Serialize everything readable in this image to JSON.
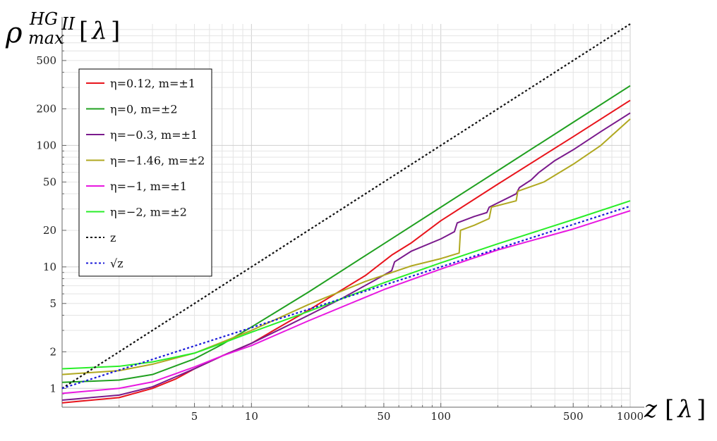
{
  "chart_data": {
    "type": "line",
    "title": "",
    "scale": {
      "x": "log",
      "y": "log"
    },
    "xlim": [
      1,
      1000
    ],
    "ylim": [
      0.7,
      1000
    ],
    "grid": true,
    "legend_placement": "top-left",
    "ylabel": {
      "base": "ρ",
      "superscript": "HG",
      "superscript_sub": "II",
      "subscript": "max",
      "unit_open": "[",
      "unit": "λ",
      "unit_close": "]"
    },
    "xlabel": {
      "base": "z",
      "unit_open": "[",
      "unit": "λ",
      "unit_close": "]"
    },
    "x_ticks": [
      5,
      10,
      50,
      100,
      500,
      1000
    ],
    "x_tick_labels": [
      "5",
      "10",
      "50",
      "100",
      "500",
      "1000"
    ],
    "y_ticks": [
      1,
      2,
      5,
      10,
      20,
      50,
      100,
      200,
      500
    ],
    "y_tick_labels": [
      "1",
      "2",
      "5",
      "10",
      "20",
      "50",
      "100",
      "200",
      "500"
    ],
    "series": [
      {
        "name": "η=0.12, m=±1",
        "color": "#e8141c",
        "dash": "solid",
        "points": [
          [
            1,
            0.76
          ],
          [
            2,
            0.84
          ],
          [
            3,
            1.0
          ],
          [
            4,
            1.2
          ],
          [
            5,
            1.45
          ],
          [
            7,
            1.85
          ],
          [
            10,
            2.35
          ],
          [
            20,
            4.4
          ],
          [
            40,
            8.5
          ],
          [
            55,
            12.5
          ],
          [
            70,
            15.8
          ],
          [
            100,
            24
          ],
          [
            200,
            48
          ],
          [
            500,
            118
          ],
          [
            1000,
            235
          ]
        ]
      },
      {
        "name": "η=0, m=±2",
        "color": "#20a020",
        "dash": "solid",
        "points": [
          [
            1,
            1.12
          ],
          [
            2,
            1.17
          ],
          [
            3,
            1.3
          ],
          [
            5,
            1.75
          ],
          [
            7,
            2.3
          ],
          [
            10,
            3.2
          ],
          [
            20,
            6.2
          ],
          [
            50,
            15.5
          ],
          [
            100,
            31
          ],
          [
            200,
            62
          ],
          [
            500,
            155
          ],
          [
            1000,
            310
          ]
        ]
      },
      {
        "name": "η=−0.3, m=±1",
        "color": "#7a1a8c",
        "dash": "solid",
        "points": [
          [
            1,
            0.8
          ],
          [
            2,
            0.88
          ],
          [
            3,
            1.03
          ],
          [
            5,
            1.45
          ],
          [
            7,
            1.85
          ],
          [
            10,
            2.35
          ],
          [
            15,
            3.2
          ],
          [
            20,
            4.0
          ],
          [
            30,
            5.5
          ],
          [
            45,
            7.8
          ],
          [
            55,
            9.3
          ],
          [
            57,
            11
          ],
          [
            70,
            13.5
          ],
          [
            100,
            17
          ],
          [
            118,
            19.5
          ],
          [
            122,
            23
          ],
          [
            150,
            26
          ],
          [
            175,
            28
          ],
          [
            180,
            31
          ],
          [
            250,
            40
          ],
          [
            260,
            45
          ],
          [
            300,
            52
          ],
          [
            330,
            60
          ],
          [
            400,
            75
          ],
          [
            500,
            92
          ],
          [
            700,
            130
          ],
          [
            1000,
            185
          ]
        ]
      },
      {
        "name": "η=−1.46, m=±2",
        "color": "#b0a820",
        "dash": "solid",
        "points": [
          [
            1,
            1.3
          ],
          [
            2,
            1.4
          ],
          [
            3,
            1.58
          ],
          [
            5,
            1.95
          ],
          [
            7,
            2.4
          ],
          [
            10,
            3.0
          ],
          [
            20,
            4.9
          ],
          [
            40,
            7.6
          ],
          [
            70,
            10.2
          ],
          [
            100,
            11.7
          ],
          [
            125,
            13
          ],
          [
            127,
            20
          ],
          [
            150,
            22
          ],
          [
            180,
            25
          ],
          [
            185,
            31
          ],
          [
            250,
            35
          ],
          [
            255,
            42
          ],
          [
            350,
            50
          ],
          [
            500,
            70
          ],
          [
            700,
            100
          ],
          [
            1000,
            165
          ]
        ]
      },
      {
        "name": "η=−1, m=±1",
        "color": "#e818e0",
        "dash": "solid",
        "points": [
          [
            1,
            0.91
          ],
          [
            2,
            1.0
          ],
          [
            3,
            1.13
          ],
          [
            5,
            1.5
          ],
          [
            7,
            1.85
          ],
          [
            10,
            2.25
          ],
          [
            20,
            3.6
          ],
          [
            50,
            6.5
          ],
          [
            100,
            9.6
          ],
          [
            200,
            13.8
          ],
          [
            500,
            20.5
          ],
          [
            1000,
            29
          ]
        ]
      },
      {
        "name": "η=−2, m=±2",
        "color": "#28ee28",
        "dash": "solid",
        "points": [
          [
            1,
            1.45
          ],
          [
            2,
            1.52
          ],
          [
            3,
            1.65
          ],
          [
            5,
            1.95
          ],
          [
            7,
            2.35
          ],
          [
            10,
            2.9
          ],
          [
            20,
            4.3
          ],
          [
            50,
            7.4
          ],
          [
            100,
            10.8
          ],
          [
            200,
            15.5
          ],
          [
            500,
            24.5
          ],
          [
            1000,
            35
          ]
        ]
      },
      {
        "name": "z",
        "color": "#111111",
        "dash": "dotted",
        "points": [
          [
            1,
            1
          ],
          [
            1000,
            1000
          ]
        ]
      },
      {
        "name": "√z",
        "color": "#1a1ad8",
        "dash": "dotted",
        "points": [
          [
            1,
            1
          ],
          [
            1000,
            31.62
          ]
        ]
      }
    ]
  }
}
